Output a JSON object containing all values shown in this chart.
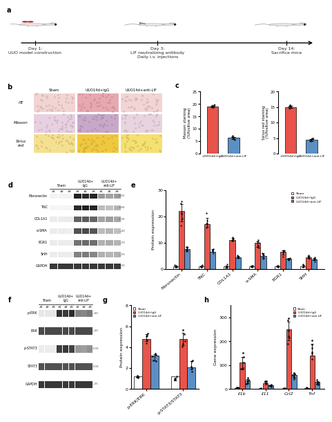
{
  "panel_c": {
    "masson": {
      "bars": [
        19.0,
        6.5
      ],
      "colors": [
        "#e8534a",
        "#5b8fc4"
      ],
      "ylabel": "Masson staining\n(%Positive area)",
      "ylim": [
        0,
        25
      ],
      "yticks": [
        0,
        5,
        10,
        15,
        20,
        25
      ],
      "xticklabels": [
        "-UUO14d+IgG",
        "-UUO14d+anti-LIF"
      ],
      "scatter_IgG": [
        18.5,
        19.0,
        19.5,
        18.8,
        19.2
      ],
      "scatter_LIF": [
        5.5,
        6.8,
        7.0,
        6.2,
        6.0
      ]
    },
    "sirius": {
      "bars": [
        15.0,
        4.5
      ],
      "colors": [
        "#e8534a",
        "#5b8fc4"
      ],
      "ylabel": "Sirius red staining\n(%Positive area)",
      "ylim": [
        0,
        20
      ],
      "yticks": [
        0,
        5,
        10,
        15,
        20
      ],
      "xticklabels": [
        "-UUO14d+IgG",
        "-UUO14d+anti-LIF"
      ],
      "scatter_IgG": [
        14.5,
        15.2,
        15.5,
        14.8,
        15.0
      ],
      "scatter_LIF": [
        4.0,
        4.5,
        4.8,
        4.2,
        4.7
      ]
    }
  },
  "panel_e": {
    "categories": [
      "Fibronectin",
      "TNC",
      "COL1A1",
      "α-SMA",
      "EGR1",
      "SHH"
    ],
    "sham": [
      1.0,
      1.0,
      1.0,
      1.0,
      1.0,
      1.0
    ],
    "IgG": [
      22.0,
      17.0,
      11.0,
      10.0,
      6.5,
      4.5
    ],
    "anti_LIF": [
      7.5,
      6.5,
      4.5,
      5.0,
      4.0,
      3.5
    ],
    "ylim": [
      0,
      30
    ],
    "yticks": [
      0,
      10,
      20,
      30
    ],
    "ylabel": "Protein expression",
    "colors": {
      "sham": "#ffffff",
      "IgG": "#e8534a",
      "anti_LIF": "#5b8fc4"
    }
  },
  "panel_g": {
    "categories": [
      "p-ERK/ERK",
      "p-STAT3/STAT3"
    ],
    "sham": [
      1.2,
      1.2
    ],
    "IgG": [
      4.8,
      4.8
    ],
    "anti_LIF": [
      3.2,
      2.1
    ],
    "ylim": [
      0,
      8
    ],
    "yticks": [
      0,
      2,
      4,
      6,
      8
    ],
    "ylabel": "Protein expression",
    "colors": {
      "sham": "#ffffff",
      "IgG": "#e8534a",
      "anti_LIF": "#5b8fc4"
    }
  },
  "panel_h": {
    "categories": [
      "Il1b",
      "Il11",
      "Ccl2",
      "Tnf"
    ],
    "sham": [
      5.0,
      2.0,
      1.0,
      3.0
    ],
    "IgG": [
      110.0,
      25.0,
      250.0,
      140.0
    ],
    "anti_LIF": [
      35.0,
      15.0,
      60.0,
      30.0
    ],
    "ylim": [
      0,
      350
    ],
    "yticks": [
      0,
      100,
      200,
      300
    ],
    "ylabel": "Gene expression",
    "colors": {
      "sham": "#ffffff",
      "IgG": "#e8534a",
      "anti_LIF": "#5b8fc4"
    }
  },
  "bg_color": "#ffffff",
  "bar_width": 0.22
}
